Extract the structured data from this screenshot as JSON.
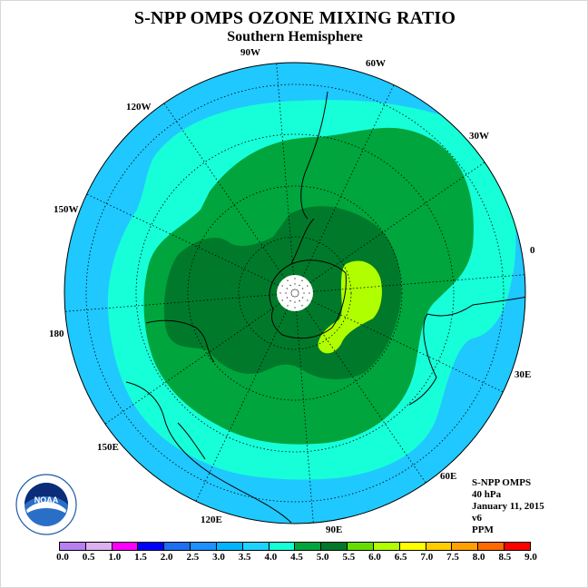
{
  "title": "S-NPP OMPS OZONE MIXING RATIO",
  "subtitle": "Southern Hemisphere",
  "longitude_labels": [
    "0",
    "30E",
    "60E",
    "90E",
    "120E",
    "150E",
    "180",
    "150W",
    "120W",
    "90W",
    "60W",
    "30W"
  ],
  "info": {
    "instrument": "S-NPP OMPS",
    "level": "40 hPa",
    "date": "January 11, 2015",
    "version": "v6",
    "units": "PPM"
  },
  "colorbar": {
    "ticks": [
      "0.0",
      "0.5",
      "1.0",
      "1.5",
      "2.0",
      "2.5",
      "3.0",
      "3.5",
      "4.0",
      "4.5",
      "5.0",
      "5.5",
      "6.0",
      "6.5",
      "7.0",
      "7.5",
      "8.0",
      "8.5",
      "9.0"
    ],
    "colors": [
      "#b97ff0",
      "#dcb0f0",
      "#ff00ff",
      "#0000ff",
      "#1c6ff0",
      "#1e90ff",
      "#00b4ff",
      "#1ed2ff",
      "#17ffd8",
      "#00a53d",
      "#007a2a",
      "#66dd00",
      "#b0ff00",
      "#ffff00",
      "#ffcc00",
      "#ffa000",
      "#ff6a00",
      "#ff0000",
      "#8b4513"
    ]
  },
  "map": {
    "projection": "south polar stereographic",
    "background_color": "#1fc8ff",
    "pole_mask_color": "#ffffff",
    "contour_colors": [
      "#1fc8ff",
      "#17ffd8",
      "#00a53d",
      "#007a2a",
      "#b0ff00"
    ]
  }
}
